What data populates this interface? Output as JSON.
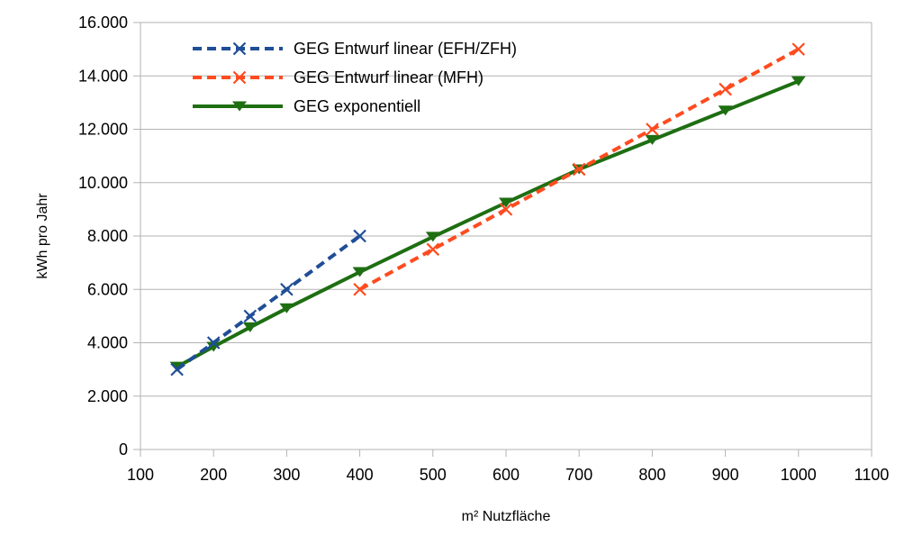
{
  "chart_data": {
    "type": "line",
    "xlabel": "m² Nutzfläche",
    "ylabel": "kWh pro Jahr",
    "xlim": [
      100,
      1100
    ],
    "ylim": [
      0,
      16000
    ],
    "x_ticks": [
      "100",
      "200",
      "300",
      "400",
      "500",
      "600",
      "700",
      "800",
      "900",
      "1000",
      "1100"
    ],
    "y_ticks": [
      "0",
      "2.000",
      "4.000",
      "6.000",
      "8.000",
      "10.000",
      "12.000",
      "14.000",
      "16.000"
    ],
    "grid": "horizontal",
    "legend_position": "top-left",
    "series": [
      {
        "name": "GEG Entwurf linear (EFH/ZFH)",
        "color": "#1f4e96",
        "line_style": "dashed",
        "marker": "x",
        "x": [
          150,
          200,
          250,
          300,
          400
        ],
        "y": [
          3000,
          4000,
          5000,
          6000,
          8000
        ]
      },
      {
        "name": "GEG Entwurf linear (MFH)",
        "color": "#ff4b1f",
        "line_style": "dashed",
        "marker": "x",
        "x": [
          400,
          500,
          600,
          700,
          800,
          900,
          1000
        ],
        "y": [
          6000,
          7500,
          9000,
          10500,
          12000,
          13500,
          15000
        ]
      },
      {
        "name": "GEG exponentiell",
        "color": "#1e6e12",
        "line_style": "solid",
        "marker": "triangle-down",
        "x": [
          150,
          200,
          250,
          300,
          400,
          500,
          600,
          700,
          800,
          900,
          1000
        ],
        "y": [
          3100,
          3850,
          4580,
          5290,
          6650,
          7970,
          9250,
          10500,
          11600,
          12700,
          13800
        ]
      }
    ]
  }
}
